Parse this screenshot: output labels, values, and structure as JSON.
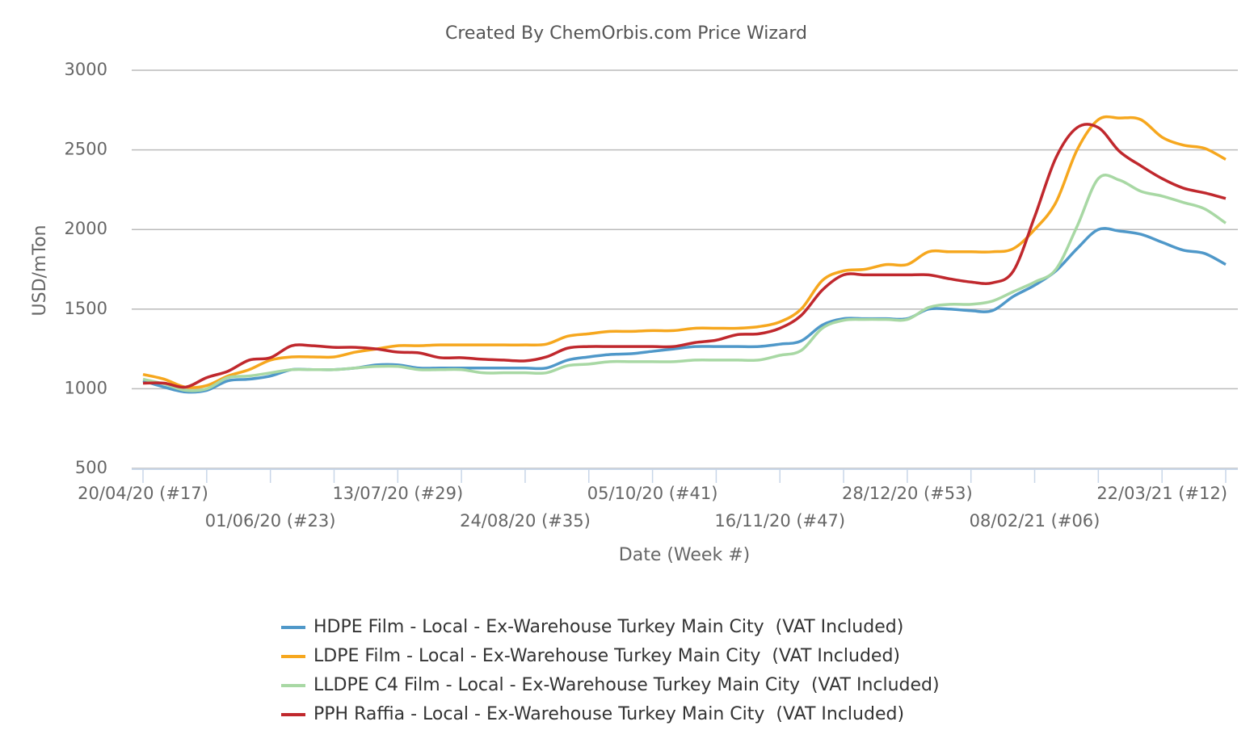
{
  "chart_data": {
    "type": "line",
    "title": "Created By ChemOrbis.com Price Wizard",
    "ylabel": "USD/mTon",
    "xlabel": "Date (Week #)",
    "categories": [
      "20/04/20 (#17)",
      null,
      null,
      null,
      null,
      null,
      "01/06/20 (#23)",
      null,
      null,
      null,
      null,
      null,
      "13/07/20 (#29)",
      null,
      null,
      null,
      null,
      null,
      "24/08/20 (#35)",
      null,
      null,
      null,
      null,
      null,
      "05/10/20 (#41)",
      null,
      null,
      null,
      null,
      null,
      "16/11/20 (#47)",
      null,
      null,
      null,
      null,
      null,
      "28/12/20 (#53)",
      null,
      null,
      null,
      null,
      null,
      "08/02/21 (#06)",
      null,
      null,
      null,
      null,
      null,
      "22/03/21 (#12)",
      null,
      null,
      null
    ],
    "ylim": [
      500,
      3000
    ],
    "yticks": [
      500,
      1000,
      1500,
      2000,
      2500,
      3000
    ],
    "grid": true,
    "legend": "bottom",
    "series": [
      {
        "name": "HDPE Film - Local - Ex-Warehouse Turkey Main City  (VAT Included)",
        "color": "#4f98c9",
        "values": [
          1050,
          1010,
          980,
          990,
          1050,
          1060,
          1080,
          1120,
          1120,
          1120,
          1130,
          1150,
          1150,
          1130,
          1130,
          1130,
          1130,
          1130,
          1130,
          1130,
          1180,
          1200,
          1215,
          1220,
          1235,
          1250,
          1265,
          1265,
          1265,
          1265,
          1280,
          1300,
          1400,
          1440,
          1440,
          1440,
          1440,
          1500,
          1500,
          1490,
          1490,
          1580,
          1650,
          1740,
          1880,
          2000,
          1990,
          1970,
          1920,
          1870,
          1850,
          1780
        ]
      },
      {
        "name": "LDPE Film - Local - Ex-Warehouse Turkey Main City  (VAT Included)",
        "color": "#f6a71e",
        "values": [
          1090,
          1060,
          1010,
          1020,
          1080,
          1120,
          1180,
          1200,
          1200,
          1200,
          1230,
          1250,
          1270,
          1270,
          1275,
          1275,
          1275,
          1275,
          1275,
          1280,
          1330,
          1345,
          1360,
          1360,
          1365,
          1365,
          1380,
          1380,
          1380,
          1390,
          1420,
          1500,
          1680,
          1740,
          1750,
          1780,
          1780,
          1860,
          1860,
          1860,
          1860,
          1880,
          2000,
          2170,
          2500,
          2690,
          2700,
          2690,
          2580,
          2530,
          2510,
          2440
        ]
      },
      {
        "name": "LLDPE C4 Film - Local - Ex-Warehouse Turkey Main City  (VAT Included)",
        "color": "#a8d8a4",
        "values": [
          1060,
          1030,
          990,
          1000,
          1070,
          1080,
          1100,
          1120,
          1120,
          1120,
          1130,
          1140,
          1140,
          1120,
          1120,
          1120,
          1100,
          1100,
          1100,
          1100,
          1145,
          1155,
          1170,
          1170,
          1170,
          1170,
          1180,
          1180,
          1180,
          1180,
          1210,
          1240,
          1380,
          1430,
          1435,
          1435,
          1435,
          1510,
          1530,
          1530,
          1550,
          1610,
          1670,
          1750,
          2020,
          2320,
          2310,
          2240,
          2210,
          2170,
          2130,
          2040
        ]
      },
      {
        "name": "PPH Raffia - Local - Ex-Warehouse Turkey Main City  (VAT Included)",
        "color": "#c0282d",
        "values": [
          1035,
          1035,
          1010,
          1070,
          1110,
          1180,
          1195,
          1270,
          1270,
          1260,
          1260,
          1250,
          1230,
          1225,
          1195,
          1195,
          1185,
          1180,
          1175,
          1200,
          1255,
          1265,
          1265,
          1265,
          1265,
          1265,
          1290,
          1305,
          1340,
          1345,
          1380,
          1460,
          1620,
          1715,
          1715,
          1715,
          1715,
          1715,
          1690,
          1670,
          1665,
          1740,
          2080,
          2450,
          2640,
          2640,
          2490,
          2400,
          2320,
          2260,
          2230,
          2195
        ]
      }
    ]
  }
}
